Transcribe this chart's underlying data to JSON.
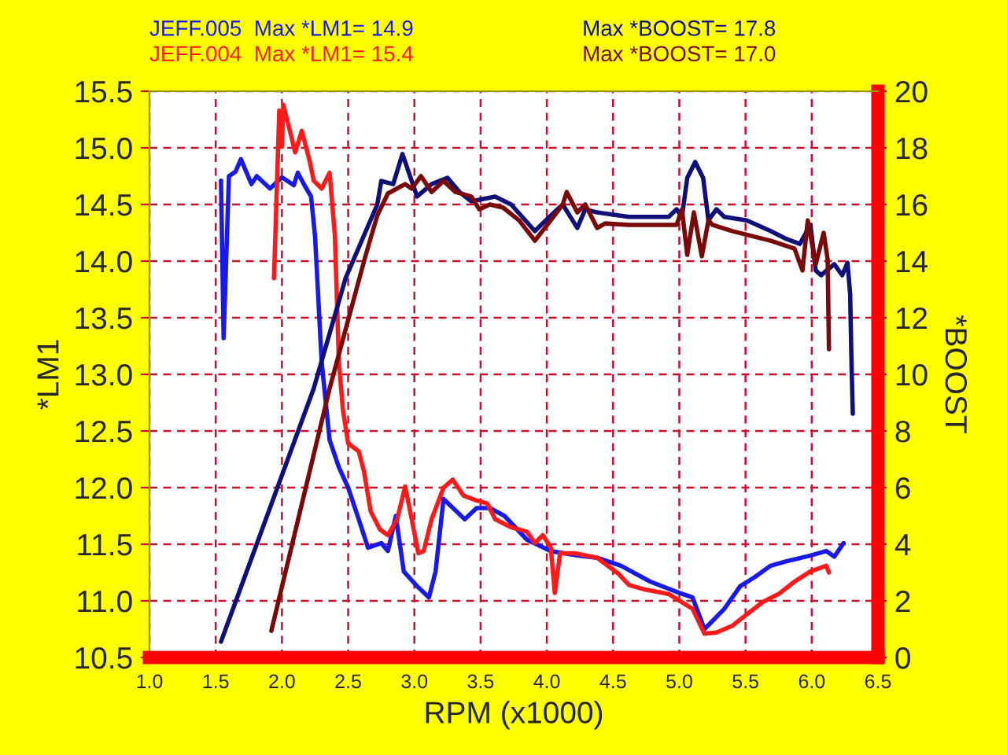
{
  "chart_data": {
    "type": "line",
    "xlabel": "RPM (x1000)",
    "ylabel": "*LM1",
    "y2label": "*BOOST",
    "xlim": [
      1.0,
      6.5
    ],
    "xticks": [
      {
        "value": 1,
        "label": "1.0"
      },
      1.5,
      {
        "value": 2,
        "label": "2.0"
      },
      2.5,
      {
        "value": 3,
        "label": "3.0"
      },
      3.5,
      {
        "value": 4,
        "label": "4.0"
      },
      4.5,
      {
        "value": 5,
        "label": "5.0"
      },
      5.5,
      {
        "value": 6,
        "label": "6.0"
      },
      6.5
    ],
    "ylim": [
      10.5,
      15.5
    ],
    "yticks": [
      10.5,
      {
        "value": 11,
        "label": "11.0"
      },
      11.5,
      {
        "value": 12,
        "label": "12.0"
      },
      12.5,
      {
        "value": 13,
        "label": "13.0"
      },
      13.5,
      {
        "value": 14,
        "label": "14.0"
      },
      14.5,
      {
        "value": 15,
        "label": "15.0"
      },
      15.5
    ],
    "y2lim": [
      0,
      20
    ],
    "y2ticks": [
      0,
      2,
      4,
      6,
      8,
      10,
      12,
      14,
      16,
      18,
      20
    ],
    "grid": true,
    "line_style": "solid",
    "marker": "none",
    "series": [
      {
        "name": "JEFF.005  Max *LM1= 14.9",
        "color": "#1a1ae6",
        "x": [
          1.54,
          1.56,
          1.6,
          1.65,
          1.69,
          1.77,
          1.81,
          1.91,
          2.0,
          2.09,
          2.12,
          2.17,
          2.22,
          2.25,
          2.3,
          2.36,
          2.43,
          2.5,
          2.58,
          2.65,
          2.75,
          2.8,
          2.86,
          2.92,
          3.02,
          3.11,
          3.16,
          3.22,
          3.38,
          3.47,
          3.57,
          3.68,
          3.85,
          4.03,
          4.24,
          4.38,
          4.56,
          4.78,
          5.0,
          5.1,
          5.19,
          5.34,
          5.46,
          5.57,
          5.69,
          5.81,
          5.99,
          6.11,
          6.17,
          6.24
        ],
        "values": [
          14.71,
          13.32,
          14.75,
          14.79,
          14.9,
          14.68,
          14.75,
          14.64,
          14.74,
          14.67,
          14.78,
          14.67,
          14.57,
          14.22,
          13.11,
          12.42,
          12.18,
          12.0,
          11.72,
          11.47,
          11.51,
          11.44,
          11.75,
          11.26,
          11.13,
          11.03,
          11.26,
          11.9,
          11.72,
          11.82,
          11.82,
          11.75,
          11.54,
          11.44,
          11.4,
          11.38,
          11.31,
          11.17,
          11.07,
          11.03,
          10.75,
          10.93,
          11.13,
          11.21,
          11.31,
          11.35,
          11.4,
          11.44,
          11.39,
          11.51
        ]
      },
      {
        "name": "JEFF.004  Max *LM1= 15.4",
        "color": "#ff1a1a",
        "x": [
          1.94,
          1.98,
          2.0,
          2.01,
          2.06,
          2.1,
          2.15,
          2.21,
          2.24,
          2.3,
          2.36,
          2.4,
          2.43,
          2.46,
          2.5,
          2.58,
          2.62,
          2.67,
          2.74,
          2.8,
          2.87,
          2.93,
          2.98,
          3.03,
          3.07,
          3.13,
          3.22,
          3.29,
          3.37,
          3.46,
          3.55,
          3.61,
          3.73,
          3.85,
          3.91,
          3.97,
          4.03,
          4.06,
          4.1,
          4.21,
          4.38,
          4.54,
          4.62,
          4.74,
          4.92,
          5.1,
          5.19,
          5.28,
          5.4,
          5.52,
          5.63,
          5.75,
          5.87,
          5.99,
          6.11,
          6.13
        ],
        "values": [
          13.85,
          15.33,
          15.01,
          15.38,
          15.15,
          14.96,
          15.15,
          14.88,
          14.71,
          14.64,
          14.78,
          14.22,
          13.11,
          12.69,
          12.39,
          12.32,
          12.14,
          11.79,
          11.63,
          11.58,
          11.72,
          12.01,
          11.72,
          11.42,
          11.44,
          11.72,
          12.0,
          12.07,
          11.93,
          11.89,
          11.86,
          11.72,
          11.65,
          11.61,
          11.51,
          11.58,
          11.47,
          11.07,
          11.42,
          11.42,
          11.38,
          11.24,
          11.14,
          11.1,
          11.06,
          10.93,
          10.71,
          10.72,
          10.78,
          10.89,
          10.99,
          11.06,
          11.17,
          11.26,
          11.31,
          11.25
        ]
      },
      {
        "name": "Max *BOOST= 17.8",
        "color": "#10107a",
        "axis": "y2",
        "x": [
          1.54,
          2.24,
          2.48,
          2.72,
          2.75,
          2.84,
          2.91,
          3.02,
          3.13,
          3.25,
          3.34,
          3.43,
          3.61,
          3.73,
          3.91,
          4.03,
          4.12,
          4.23,
          4.29,
          4.38,
          4.62,
          4.92,
          4.98,
          5.02,
          5.06,
          5.12,
          5.18,
          5.22,
          5.28,
          5.34,
          5.51,
          5.69,
          5.81,
          5.91,
          5.99,
          6.03,
          6.07,
          6.17,
          6.23,
          6.27,
          6.29,
          6.3,
          6.31
        ],
        "values": [
          0.56,
          9.5,
          13.39,
          16.0,
          16.83,
          16.72,
          17.78,
          16.28,
          16.72,
          16.94,
          16.44,
          16.11,
          16.28,
          16.0,
          15.06,
          15.61,
          16.0,
          15.17,
          15.83,
          15.72,
          15.56,
          15.56,
          15.83,
          15.56,
          16.94,
          17.5,
          16.94,
          15.44,
          15.83,
          15.56,
          15.44,
          15.06,
          14.78,
          14.61,
          15.28,
          13.67,
          13.5,
          13.89,
          13.5,
          13.94,
          12.83,
          10.44,
          8.61
        ]
      },
      {
        "name": "Max *BOOST= 17.0",
        "color": "#7a0a0a",
        "axis": "y2",
        "x": [
          1.92,
          2.36,
          2.63,
          2.72,
          2.8,
          2.93,
          2.98,
          3.05,
          3.13,
          3.22,
          3.31,
          3.43,
          3.49,
          3.57,
          3.67,
          3.79,
          3.91,
          4.03,
          4.12,
          4.15,
          4.23,
          4.29,
          4.38,
          4.44,
          4.62,
          4.98,
          5.02,
          5.06,
          5.11,
          5.17,
          5.22,
          5.25,
          5.4,
          5.69,
          5.87,
          5.93,
          5.97,
          6.03,
          6.09,
          6.12,
          6.13
        ],
        "values": [
          0.94,
          9.5,
          14.17,
          15.61,
          16.39,
          16.72,
          16.56,
          17.0,
          16.44,
          16.83,
          16.44,
          16.28,
          15.83,
          16.0,
          15.89,
          15.44,
          14.72,
          15.44,
          16.0,
          16.44,
          15.72,
          16.0,
          15.17,
          15.33,
          15.28,
          15.28,
          15.83,
          14.22,
          15.72,
          14.17,
          15.44,
          15.28,
          15.06,
          14.72,
          14.44,
          13.67,
          15.44,
          13.89,
          15.0,
          14.06,
          10.89
        ]
      }
    ]
  }
}
